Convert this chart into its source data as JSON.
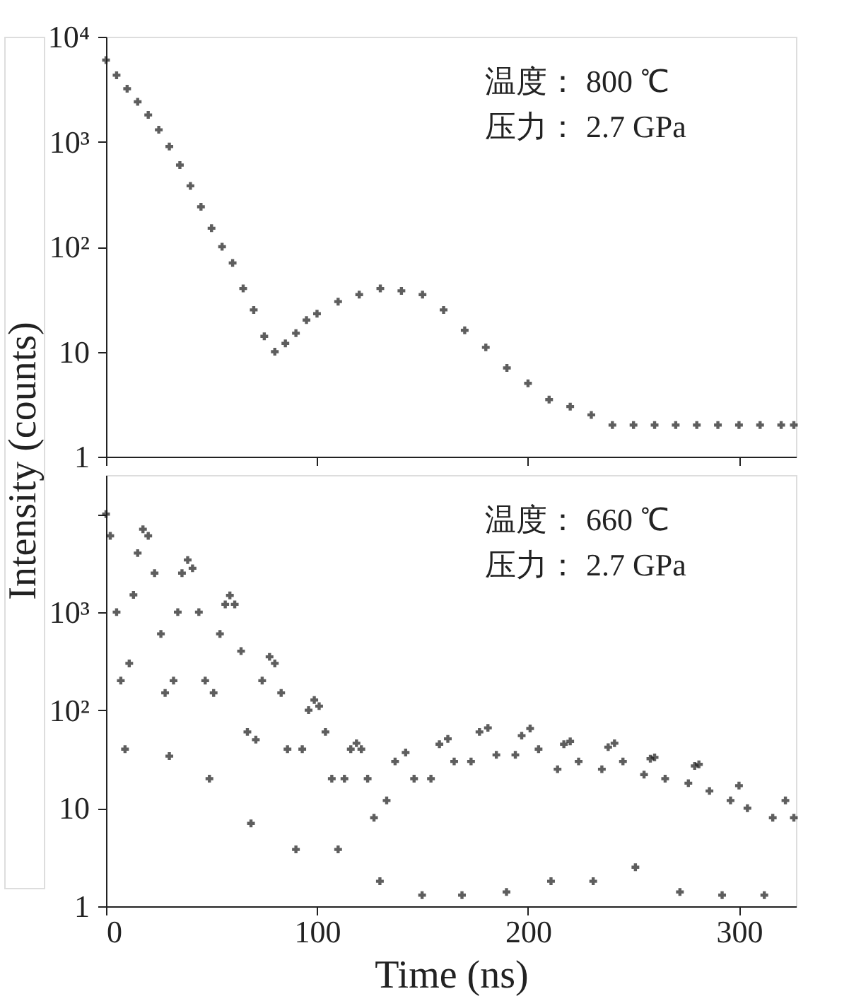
{
  "chart_data": [
    {
      "type": "scatter",
      "ylabel": "Intensity (counts)",
      "annotations": [
        "温度： 800 ℃",
        "压力： 2.7 GPa"
      ],
      "log": "y",
      "marker": "cross",
      "grid": false,
      "tick_labels": "y",
      "xlim": [
        0,
        327
      ],
      "ylim": [
        1,
        10000
      ],
      "yticks": [
        1,
        10,
        {
          "value": 100,
          "label": "10²"
        },
        {
          "value": 1000,
          "label": "10³"
        },
        {
          "value": 10000,
          "label": "10⁴"
        }
      ],
      "x": [
        0,
        5,
        10,
        15,
        20,
        25,
        30,
        35,
        40,
        45,
        50,
        55,
        60,
        65,
        70,
        75,
        80,
        85,
        90,
        95,
        100,
        110,
        120,
        130,
        140,
        150,
        160,
        170,
        180,
        190,
        200,
        210,
        220,
        230,
        240,
        250,
        260,
        270,
        280,
        290,
        300,
        310,
        320,
        326
      ],
      "series": [
        {
          "color": "#1a1a1a",
          "values": [
            6000,
            4300,
            3200,
            2400,
            1800,
            1300,
            900,
            600,
            380,
            240,
            150,
            100,
            70,
            40,
            25,
            14,
            10,
            12,
            15,
            20,
            23,
            30,
            35,
            40,
            38,
            35,
            25,
            16,
            11,
            7,
            5,
            3.5,
            3,
            2.5,
            2,
            2,
            2,
            2,
            2,
            2,
            2,
            2,
            2,
            2
          ]
        }
      ]
    },
    {
      "type": "scatter",
      "xlabel": "Time (ns)",
      "annotations": [
        "温度： 660 ℃",
        "压力： 2.7 GPa"
      ],
      "log": "y",
      "marker": "cross",
      "grid": false,
      "xlim": [
        0,
        327
      ],
      "ylim": [
        1,
        25000
      ],
      "xticks": [
        0,
        100,
        200,
        300
      ],
      "yticks": [
        1,
        10,
        {
          "value": 100,
          "label": "10²"
        },
        {
          "value": 1000,
          "label": "10³"
        },
        {
          "value": 10000,
          "label": null
        }
      ],
      "x": [
        0,
        2,
        5,
        7,
        9,
        11,
        13,
        15,
        17.5,
        20,
        23,
        26,
        28,
        30,
        32,
        34,
        36,
        38.7,
        41,
        44,
        47,
        49,
        51,
        54,
        56.5,
        58.7,
        61,
        64,
        67,
        68.7,
        71,
        74,
        77.5,
        80,
        83,
        86,
        90,
        93,
        96,
        98.7,
        101,
        104,
        107,
        110,
        113,
        116,
        118.7,
        121,
        124,
        127,
        129.8,
        133,
        137,
        142,
        146,
        149.8,
        154,
        158,
        162,
        165,
        168.7,
        173,
        177,
        181,
        185,
        189.8,
        194,
        197,
        201,
        205,
        210.9,
        214,
        217,
        220,
        224,
        230.9,
        235,
        238,
        241,
        245,
        250.9,
        255,
        258,
        260,
        265,
        272,
        276,
        279,
        281,
        286,
        292,
        296,
        300,
        304,
        312,
        316,
        322,
        326
      ],
      "series": [
        {
          "color": "#1a1a1a",
          "values": [
            10000,
            6000,
            1000,
            200,
            40,
            300,
            1500,
            4000,
            7000,
            6000,
            2500,
            600,
            150,
            34,
            200,
            1000,
            2500,
            3400,
            2800,
            1000,
            200,
            20,
            150,
            600,
            1200,
            1480,
            1200,
            400,
            60,
            7,
            50,
            200,
            350,
            300,
            150,
            40,
            3.8,
            40,
            100,
            127,
            110,
            60,
            20,
            3.8,
            20,
            40,
            46,
            40,
            20,
            8,
            1.8,
            12,
            30,
            37,
            20,
            1.3,
            20,
            45,
            51,
            30,
            1.3,
            30,
            60,
            66,
            35,
            1.4,
            35,
            55,
            65,
            40,
            1.8,
            25,
            45,
            48,
            30,
            1.8,
            25,
            42,
            46,
            30,
            2.5,
            22,
            32,
            33,
            20,
            1.4,
            18,
            27,
            28,
            15,
            1.3,
            12,
            17,
            10,
            1.3,
            8,
            12,
            8
          ]
        }
      ]
    }
  ]
}
